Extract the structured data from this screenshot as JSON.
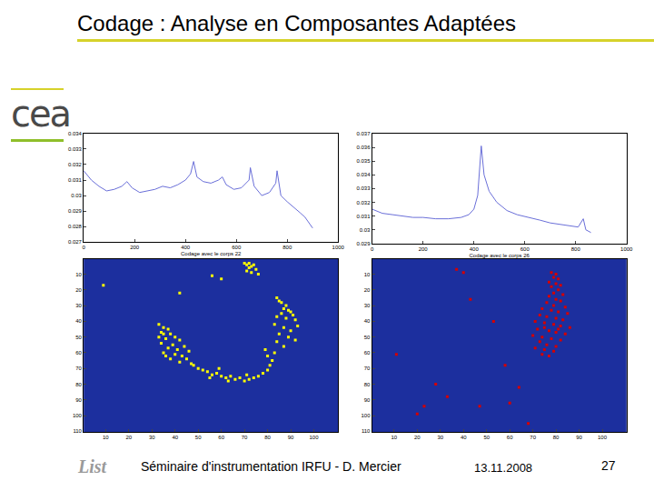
{
  "slide": {
    "title": "Codage : Analyse en Composantes Adaptées",
    "logo": "cea",
    "footer_logo": "List",
    "footer": "Séminaire d'instrumentation IRFU - D. Mercier",
    "date": "13.11.2008",
    "page": 27
  },
  "chart_data": [
    {
      "type": "line",
      "color": "#6a6fd8",
      "x_label": "Codage avec le corps 22",
      "x": [
        0,
        30,
        60,
        90,
        120,
        150,
        170,
        190,
        220,
        250,
        280,
        310,
        340,
        370,
        400,
        420,
        432,
        445,
        470,
        500,
        530,
        545,
        560,
        590,
        620,
        650,
        655,
        670,
        700,
        730,
        755,
        760,
        775,
        800,
        830,
        850,
        870,
        890,
        900
      ],
      "values": [
        0.0316,
        0.031,
        0.0306,
        0.0303,
        0.0304,
        0.0306,
        0.0309,
        0.0305,
        0.0302,
        0.0303,
        0.0304,
        0.0306,
        0.0305,
        0.0307,
        0.031,
        0.0314,
        0.0322,
        0.0312,
        0.0309,
        0.0308,
        0.031,
        0.0312,
        0.0307,
        0.0304,
        0.0305,
        0.031,
        0.0318,
        0.0306,
        0.03,
        0.0302,
        0.0308,
        0.0316,
        0.03,
        0.0296,
        0.0292,
        0.0289,
        0.0286,
        0.0281,
        0.0279
      ],
      "xlim": [
        0,
        1000
      ],
      "xticks": [
        0,
        200,
        400,
        600,
        800,
        1000
      ],
      "ylim": [
        0.027,
        0.034
      ],
      "yticks": [
        0.027,
        0.028,
        0.029,
        0.03,
        0.031,
        0.032,
        0.033,
        0.034
      ],
      "grid": false
    },
    {
      "type": "line",
      "color": "#6a6fd8",
      "x_label": "Codage avec le corps 26",
      "x": [
        0,
        40,
        80,
        120,
        160,
        200,
        250,
        300,
        350,
        380,
        400,
        415,
        429,
        440,
        460,
        490,
        530,
        570,
        620,
        660,
        700,
        740,
        780,
        810,
        830,
        840,
        860
      ],
      "values": [
        0.0315,
        0.0312,
        0.0311,
        0.031,
        0.0309,
        0.0309,
        0.0308,
        0.0308,
        0.0309,
        0.0311,
        0.0315,
        0.0325,
        0.0361,
        0.034,
        0.0328,
        0.032,
        0.0314,
        0.0311,
        0.0309,
        0.0307,
        0.0305,
        0.0304,
        0.0303,
        0.0302,
        0.0308,
        0.03,
        0.0298
      ],
      "xlim": [
        0,
        1000
      ],
      "xticks": [
        0,
        200,
        400,
        600,
        800,
        1000
      ],
      "ylim": [
        0.029,
        0.037
      ],
      "yticks": [
        0.029,
        0.03,
        0.031,
        0.032,
        0.033,
        0.034,
        0.035,
        0.036,
        0.037
      ],
      "grid": false
    },
    {
      "type": "scatter",
      "marker": "square",
      "color": "#ffff00",
      "x": [
        70,
        71,
        72,
        73,
        74,
        72,
        75,
        73,
        76,
        71,
        9,
        42,
        56,
        60,
        35,
        84,
        85,
        86,
        88,
        87,
        89,
        90,
        86,
        91,
        84,
        88,
        92,
        83,
        87,
        90,
        85,
        89,
        92,
        84,
        87,
        93,
        33,
        35,
        37,
        34,
        38,
        40,
        36,
        42,
        34,
        39,
        44,
        37,
        41,
        46,
        35,
        40,
        43,
        38,
        45,
        42,
        47,
        36,
        33,
        48,
        50,
        52,
        54,
        56,
        58,
        60,
        62,
        64,
        66,
        68,
        70,
        72,
        74,
        76,
        78,
        80,
        81,
        82,
        80,
        83,
        79,
        55,
        63,
        71,
        59
      ],
      "values": [
        3,
        4,
        3,
        5,
        4,
        6,
        7,
        9,
        10,
        8,
        17,
        22,
        11,
        13,
        48,
        25,
        27,
        28,
        30,
        32,
        33,
        34,
        35,
        36,
        37,
        38,
        39,
        42,
        44,
        46,
        48,
        50,
        52,
        53,
        56,
        43,
        42,
        44,
        45,
        47,
        48,
        50,
        51,
        52,
        54,
        55,
        56,
        57,
        58,
        59,
        60,
        61,
        62,
        64,
        64,
        66,
        67,
        62,
        50,
        68,
        70,
        71,
        72,
        74,
        73,
        75,
        76,
        75,
        77,
        76,
        78,
        77,
        76,
        75,
        73,
        71,
        68,
        65,
        62,
        60,
        58,
        76,
        78,
        74,
        70
      ],
      "xlim": [
        0.5,
        110.5
      ],
      "xticks": [
        10,
        20,
        30,
        40,
        50,
        60,
        70,
        80,
        90,
        100
      ],
      "ylim": [
        110.5,
        0.5
      ],
      "yticks": [
        10,
        20,
        30,
        40,
        50,
        60,
        70,
        80,
        90,
        100,
        110
      ],
      "grid": false
    },
    {
      "type": "scatter",
      "marker": "square",
      "color": "#d40000",
      "x": [
        78,
        80,
        79,
        81,
        77,
        80,
        82,
        78,
        81,
        79,
        83,
        77,
        80,
        82,
        76,
        79,
        84,
        74,
        78,
        81,
        85,
        73,
        76,
        80,
        83,
        71,
        75,
        79,
        82,
        86,
        72,
        77,
        80,
        84,
        70,
        74,
        78,
        82,
        73,
        76,
        80,
        71,
        75,
        79,
        74,
        77,
        81,
        75,
        37,
        40,
        43,
        53,
        11,
        23,
        33,
        47,
        64,
        68,
        58,
        28,
        60,
        20
      ],
      "values": [
        9,
        10,
        12,
        13,
        15,
        16,
        17,
        18,
        20,
        22,
        23,
        24,
        26,
        27,
        28,
        30,
        31,
        32,
        33,
        34,
        35,
        36,
        37,
        38,
        39,
        40,
        41,
        42,
        43,
        44,
        45,
        46,
        47,
        48,
        49,
        50,
        51,
        52,
        53,
        55,
        56,
        57,
        58,
        59,
        61,
        62,
        45,
        44,
        7,
        9,
        26,
        40,
        61,
        94,
        88,
        94,
        82,
        105,
        68,
        80,
        92,
        99
      ],
      "xlim": [
        0.5,
        110.5
      ],
      "xticks": [
        10,
        20,
        30,
        40,
        50,
        60,
        70,
        80,
        90,
        100
      ],
      "ylim": [
        110.5,
        0.5
      ],
      "yticks": [
        10,
        20,
        30,
        40,
        50,
        60,
        70,
        80,
        90,
        100,
        110
      ],
      "grid": false
    }
  ]
}
